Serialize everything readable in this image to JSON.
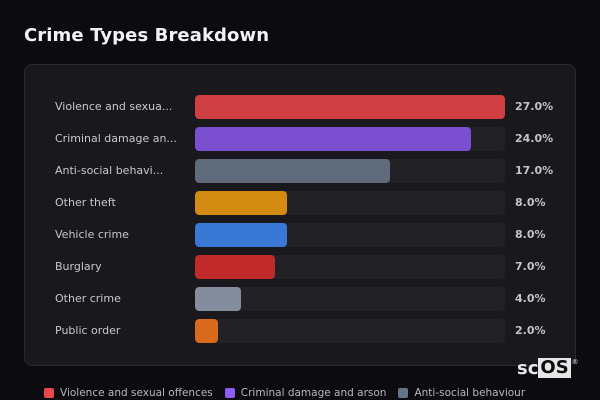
{
  "header": {
    "title": "Crime Types Breakdown"
  },
  "chart_data": {
    "type": "bar",
    "orientation": "horizontal",
    "title": "Crime Types Breakdown",
    "categories": [
      "Violence and sexual offences",
      "Criminal damage and arson",
      "Anti-social behaviour",
      "Other theft",
      "Vehicle crime",
      "Burglary",
      "Other crime",
      "Public order"
    ],
    "display_labels": [
      "Violence and sexua...",
      "Criminal damage an...",
      "Anti-social behavi...",
      "Other theft",
      "Vehicle crime",
      "Burglary",
      "Other crime",
      "Public order"
    ],
    "values": [
      27.0,
      24.0,
      17.0,
      8.0,
      8.0,
      7.0,
      4.0,
      2.0
    ],
    "value_labels": [
      "27.0%",
      "24.0%",
      "17.0%",
      "8.0%",
      "8.0%",
      "7.0%",
      "4.0%",
      "2.0%"
    ],
    "colors": [
      "#cf3f44",
      "#7a4fd0",
      "#5f6b7b",
      "#d38b12",
      "#3a78d6",
      "#c12a2b",
      "#838d9e",
      "#d96a1c"
    ],
    "unit": "%",
    "scale_max": 27.0,
    "grid": false,
    "legend": {
      "position": "bottom",
      "entries": [
        {
          "label": "Violence and sexual offences",
          "color": "#e5484d"
        },
        {
          "label": "Criminal damage and arson",
          "color": "#8b5cf6"
        },
        {
          "label": "Anti-social behaviour",
          "color": "#64748b"
        }
      ]
    }
  },
  "branding": {
    "logo_prefix": "sc",
    "logo_box": "OS",
    "logo_mark": "®"
  }
}
